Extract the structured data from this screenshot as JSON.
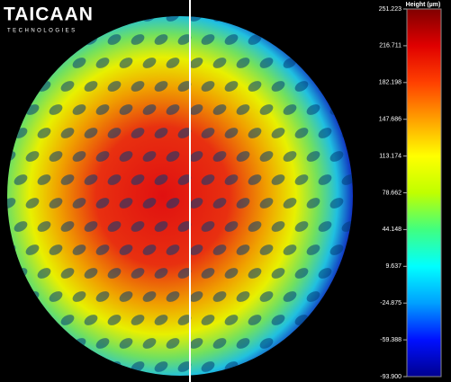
{
  "logo": {
    "name": "TAICAAN",
    "subtitle": "TECHNOLOGIES"
  },
  "colorbar": {
    "title": "Height (µm)",
    "lim": [
      {
        "value": -93.9,
        "label": "-93.900"
      },
      251.223
    ],
    "ticks": [
      251.223,
      216.711,
      182.198,
      147.686,
      113.174,
      78.662,
      44.148,
      9.637,
      -24.875,
      -59.388,
      {
        "value": -93.9,
        "label": "-93.900"
      }
    ],
    "colors": [
      "#00008f",
      "#0010ff",
      "#00a0ff",
      "#00ffff",
      "#40ff80",
      "#c0ff00",
      "#ffff00",
      "#ffa000",
      "#ff4000",
      "#e00000",
      "#800000"
    ]
  }
}
